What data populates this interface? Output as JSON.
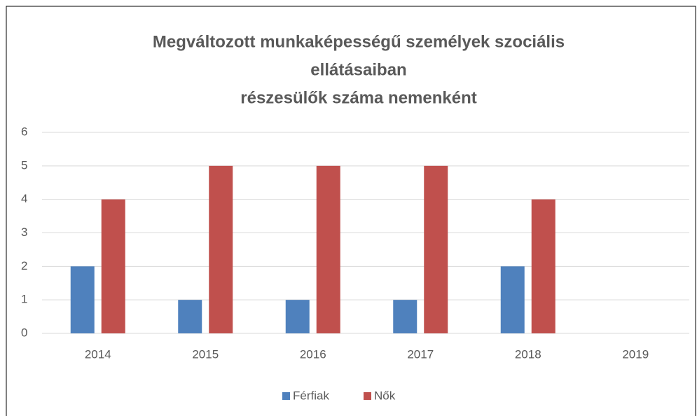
{
  "chart_data": {
    "type": "bar",
    "title": [
      "Megváltozott munkaképességű személyek szociális",
      "ellátásaiban",
      "részesülők száma nemenként"
    ],
    "categories": [
      "2014",
      "2015",
      "2016",
      "2017",
      "2018",
      "2019"
    ],
    "series": [
      {
        "name": "Férfiak",
        "color": "#4f81bd",
        "values": [
          2,
          1,
          1,
          1,
          2,
          0
        ]
      },
      {
        "name": "Nők",
        "color": "#c0504d",
        "values": [
          4,
          5,
          5,
          5,
          4,
          0
        ]
      }
    ],
    "ylim": [
      0,
      6
    ],
    "yticks": [
      0,
      1,
      2,
      3,
      4,
      5,
      6
    ],
    "grid": true,
    "legend": "bottom"
  }
}
